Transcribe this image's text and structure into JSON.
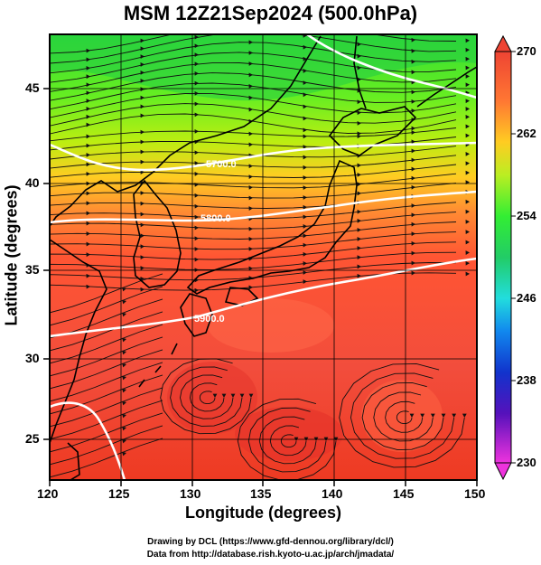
{
  "title": "MSM 12Z21Sep2024 (500.0hPa)",
  "xlabel": "Longitude (degrees)",
  "ylabel": "Latitude  (degrees)",
  "credits": [
    "Drawing by DCL (https://www.gfd-dennou.org/library/dcl/)",
    "Data from http://database.rish.kyoto-u.ac.jp/arch/jmadata/"
  ],
  "map": {
    "lon_range": [
      120,
      150
    ],
    "lat_range": [
      22.5,
      47.5
    ],
    "lon_ticks": [
      "120",
      "125",
      "130",
      "135",
      "140",
      "145",
      "150"
    ],
    "lat_ticks": [
      "25",
      "30",
      "35",
      "40",
      "45"
    ],
    "contour_labels": [
      "5700.0",
      "5800.0",
      "5900.0"
    ],
    "field": "temperature (K) shaded, geopotential height contours, wind streamlines"
  },
  "colorbar": {
    "min": 230,
    "max": 270,
    "labels": [
      "270",
      "262",
      "254",
      "246",
      "238",
      "230"
    ],
    "colors": [
      "#ee33dd",
      "#5511bb",
      "#1133cc",
      "#1188ee",
      "#22dddd",
      "#22cc66",
      "#33ee33",
      "#bbee22",
      "#ffcc22",
      "#ff7733",
      "#ee4433"
    ]
  }
}
